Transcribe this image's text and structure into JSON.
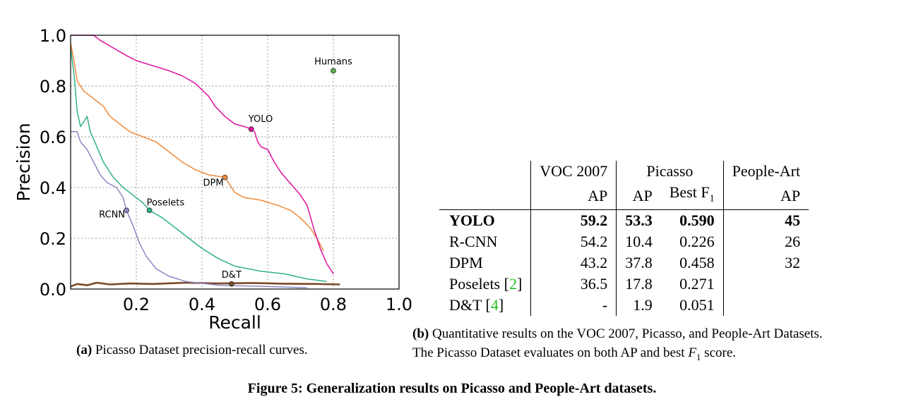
{
  "chart_data": {
    "type": "line",
    "xlabel": "Recall",
    "ylabel": "Precision",
    "xlim": [
      0.0,
      1.0
    ],
    "ylim": [
      0.0,
      1.0
    ],
    "xticks": [
      "0.2",
      "0.4",
      "0.6",
      "0.8",
      "1.0"
    ],
    "yticks": [
      "0.0",
      "0.2",
      "0.4",
      "0.6",
      "0.8",
      "1.0"
    ],
    "xtick_values": [
      0.2,
      0.4,
      0.6,
      0.8,
      1.0
    ],
    "ytick_values": [
      0.0,
      0.2,
      0.4,
      0.6,
      0.8,
      1.0
    ],
    "grid": true,
    "series": [
      {
        "name": "YOLO",
        "color": "#e0109c",
        "label_point": [
          0.55,
          0.63
        ],
        "points": [
          [
            0.0,
            1.0
          ],
          [
            0.07,
            1.0
          ],
          [
            0.09,
            0.98
          ],
          [
            0.13,
            0.95
          ],
          [
            0.17,
            0.92
          ],
          [
            0.2,
            0.9
          ],
          [
            0.25,
            0.88
          ],
          [
            0.3,
            0.86
          ],
          [
            0.34,
            0.84
          ],
          [
            0.38,
            0.81
          ],
          [
            0.42,
            0.76
          ],
          [
            0.44,
            0.72
          ],
          [
            0.47,
            0.68
          ],
          [
            0.5,
            0.65
          ],
          [
            0.53,
            0.64
          ],
          [
            0.55,
            0.63
          ],
          [
            0.56,
            0.62
          ],
          [
            0.57,
            0.58
          ],
          [
            0.58,
            0.56
          ],
          [
            0.6,
            0.55
          ],
          [
            0.62,
            0.5
          ],
          [
            0.64,
            0.46
          ],
          [
            0.66,
            0.43
          ],
          [
            0.68,
            0.4
          ],
          [
            0.7,
            0.37
          ],
          [
            0.72,
            0.33
          ],
          [
            0.74,
            0.24
          ],
          [
            0.76,
            0.16
          ],
          [
            0.78,
            0.1
          ],
          [
            0.8,
            0.06
          ]
        ]
      },
      {
        "name": "DPM",
        "color": "#ee8a3a",
        "label_point": [
          0.47,
          0.44
        ],
        "points": [
          [
            0.0,
            0.97
          ],
          [
            0.01,
            0.9
          ],
          [
            0.02,
            0.82
          ],
          [
            0.04,
            0.78
          ],
          [
            0.06,
            0.76
          ],
          [
            0.08,
            0.74
          ],
          [
            0.1,
            0.72
          ],
          [
            0.12,
            0.68
          ],
          [
            0.15,
            0.65
          ],
          [
            0.18,
            0.62
          ],
          [
            0.22,
            0.6
          ],
          [
            0.26,
            0.58
          ],
          [
            0.3,
            0.54
          ],
          [
            0.34,
            0.5
          ],
          [
            0.38,
            0.47
          ],
          [
            0.42,
            0.45
          ],
          [
            0.47,
            0.44
          ],
          [
            0.48,
            0.42
          ],
          [
            0.5,
            0.38
          ],
          [
            0.53,
            0.36
          ],
          [
            0.58,
            0.35
          ],
          [
            0.63,
            0.33
          ],
          [
            0.67,
            0.31
          ],
          [
            0.7,
            0.28
          ],
          [
            0.73,
            0.24
          ],
          [
            0.75,
            0.2
          ],
          [
            0.77,
            0.15
          ]
        ]
      },
      {
        "name": "Poselets",
        "color": "#30b088",
        "label_point": [
          0.24,
          0.31
        ],
        "points": [
          [
            0.0,
            0.95
          ],
          [
            0.01,
            0.85
          ],
          [
            0.02,
            0.7
          ],
          [
            0.03,
            0.64
          ],
          [
            0.05,
            0.68
          ],
          [
            0.06,
            0.62
          ],
          [
            0.08,
            0.56
          ],
          [
            0.1,
            0.5
          ],
          [
            0.13,
            0.44
          ],
          [
            0.16,
            0.4
          ],
          [
            0.19,
            0.37
          ],
          [
            0.22,
            0.34
          ],
          [
            0.24,
            0.31
          ],
          [
            0.28,
            0.28
          ],
          [
            0.32,
            0.24
          ],
          [
            0.36,
            0.2
          ],
          [
            0.4,
            0.16
          ],
          [
            0.45,
            0.12
          ],
          [
            0.5,
            0.09
          ],
          [
            0.58,
            0.07
          ],
          [
            0.65,
            0.06
          ],
          [
            0.72,
            0.04
          ],
          [
            0.78,
            0.03
          ]
        ]
      },
      {
        "name": "RCNN",
        "color": "#8c88c4",
        "label_point": [
          0.17,
          0.31
        ],
        "points": [
          [
            0.0,
            0.62
          ],
          [
            0.02,
            0.62
          ],
          [
            0.03,
            0.58
          ],
          [
            0.05,
            0.55
          ],
          [
            0.07,
            0.5
          ],
          [
            0.09,
            0.45
          ],
          [
            0.11,
            0.42
          ],
          [
            0.14,
            0.4
          ],
          [
            0.16,
            0.36
          ],
          [
            0.17,
            0.31
          ],
          [
            0.19,
            0.25
          ],
          [
            0.21,
            0.18
          ],
          [
            0.23,
            0.13
          ],
          [
            0.26,
            0.08
          ],
          [
            0.3,
            0.05
          ],
          [
            0.35,
            0.03
          ],
          [
            0.45,
            0.015
          ],
          [
            0.6,
            0.01
          ],
          [
            0.72,
            0.005
          ]
        ]
      },
      {
        "name": "D&T",
        "color": "#7a4a28",
        "label_point": [
          0.49,
          0.02
        ],
        "points": [
          [
            0.0,
            0.01
          ],
          [
            0.02,
            0.02
          ],
          [
            0.05,
            0.015
          ],
          [
            0.08,
            0.025
          ],
          [
            0.12,
            0.018
          ],
          [
            0.18,
            0.022
          ],
          [
            0.25,
            0.02
          ],
          [
            0.35,
            0.025
          ],
          [
            0.45,
            0.022
          ],
          [
            0.55,
            0.024
          ],
          [
            0.65,
            0.021
          ],
          [
            0.75,
            0.02
          ],
          [
            0.82,
            0.018
          ]
        ]
      }
    ],
    "markers": [
      {
        "name": "Humans",
        "x": 0.8,
        "y": 0.86,
        "color": "#5ab04a"
      }
    ]
  },
  "table": {
    "headers": {
      "voc": "VOC 2007",
      "picasso": "Picasso",
      "people_art": "People-Art"
    },
    "subheaders": {
      "voc_ap": "AP",
      "picasso_ap": "AP",
      "picasso_f1": "Best F",
      "f1_sub": "1",
      "people_ap": "AP"
    },
    "rows": [
      {
        "name": "YOLO",
        "voc": "59.2",
        "pap": "53.3",
        "pf1": "0.590",
        "art": "45"
      },
      {
        "name": "R-CNN",
        "voc": "54.2",
        "pap": "10.4",
        "pf1": "0.226",
        "art": "26"
      },
      {
        "name": "DPM",
        "voc": "43.2",
        "pap": "37.8",
        "pf1": "0.458",
        "art": "32"
      },
      {
        "name": "Poselets",
        "ref": "2",
        "voc": "36.5",
        "pap": "17.8",
        "pf1": "0.271",
        "art": ""
      },
      {
        "name": "D&T",
        "ref": "4",
        "voc": "-",
        "pap": "1.9",
        "pf1": "0.051",
        "art": ""
      }
    ]
  },
  "captions": {
    "a_label": "(a)",
    "a_text": "Picasso Dataset precision-recall curves.",
    "b_label": "(b)",
    "b_line1": "Quantitative results on the VOC 2007, Picasso, and People-Art Datasets.",
    "b_line2_pre": "The Picasso Dataset evaluates on both AP and best",
    "b_line2_var": "F",
    "b_line2_sub": "1",
    "b_line2_post": "score.",
    "figure": "Figure 5: Generalization results on Picasso and People-Art datasets."
  }
}
